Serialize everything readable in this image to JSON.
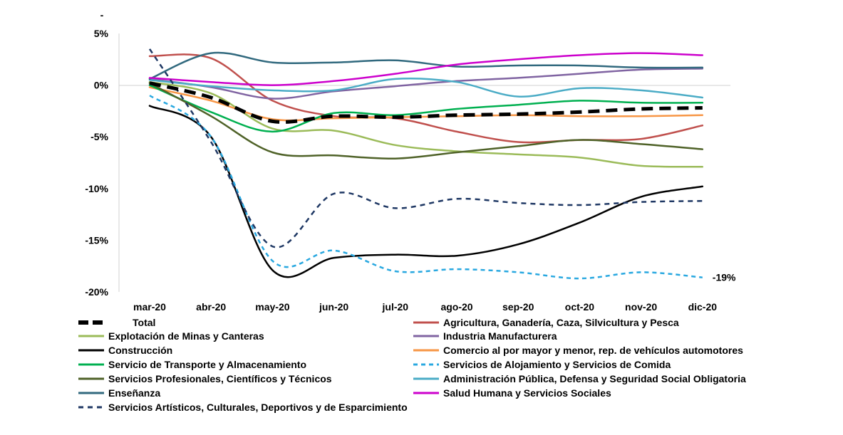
{
  "chart_data": {
    "type": "line",
    "title": "",
    "xlabel": "",
    "ylabel": "",
    "top_mark": "-",
    "categories": [
      "mar-20",
      "abr-20",
      "may-20",
      "jun-20",
      "jul-20",
      "ago-20",
      "sep-20",
      "oct-20",
      "nov-20",
      "dic-20"
    ],
    "y_ticks": [
      {
        "value": 5,
        "label": "5%"
      },
      {
        "value": 0,
        "label": "0%"
      },
      {
        "value": -5,
        "label": "-5%"
      },
      {
        "value": -10,
        "label": "-10%"
      },
      {
        "value": -15,
        "label": "-15%"
      },
      {
        "value": -20,
        "label": "-20%"
      }
    ],
    "ylim": [
      -20,
      5
    ],
    "grid": false,
    "legend_position": "bottom",
    "annotations": [
      {
        "text": "-19%",
        "series": "Servicios de Alojamiento y Servicios de Comida",
        "x": "dic-20"
      }
    ],
    "series": [
      {
        "name": "Total",
        "color": "#000000",
        "dash": "long",
        "width": 5,
        "values": [
          0.2,
          -1.2,
          -3.5,
          -3.0,
          -3.1,
          -2.9,
          -2.8,
          -2.6,
          -2.3,
          -2.2
        ]
      },
      {
        "name": "Agricultura, Ganadería, Caza, Silvicultura y Pesca",
        "color": "#c0504d",
        "dash": "solid",
        "width": 2.5,
        "values": [
          2.8,
          2.6,
          -1.5,
          -3.0,
          -3.2,
          -4.5,
          -5.5,
          -5.3,
          -5.2,
          -3.9
        ]
      },
      {
        "name": "Explotación de Minas y Canteras",
        "color": "#9bbb59",
        "dash": "solid",
        "width": 2.5,
        "values": [
          0.3,
          -0.8,
          -4.2,
          -4.4,
          -5.8,
          -6.4,
          -6.7,
          -7.0,
          -7.8,
          -7.9
        ]
      },
      {
        "name": "Industria Manufacturera",
        "color": "#8064a2",
        "dash": "solid",
        "width": 2.5,
        "values": [
          0.6,
          -0.2,
          -1.3,
          -0.6,
          -0.1,
          0.4,
          0.7,
          1.1,
          1.5,
          1.6
        ]
      },
      {
        "name": "Construcción",
        "color": "#000000",
        "dash": "solid",
        "width": 2.5,
        "values": [
          -2.0,
          -5.0,
          -17.9,
          -16.7,
          -16.4,
          -16.5,
          -15.4,
          -13.3,
          -10.8,
          -9.8
        ]
      },
      {
        "name": "Comercio al por mayor y menor, rep. de vehículos automotores",
        "color": "#f79646",
        "dash": "solid",
        "width": 2.5,
        "values": [
          -0.2,
          -1.5,
          -3.3,
          -3.2,
          -3.1,
          -3.0,
          -2.9,
          -3.0,
          -3.0,
          -2.9
        ]
      },
      {
        "name": "Servicio de Transporte y Almacenamiento",
        "color": "#00b050",
        "dash": "solid",
        "width": 2.5,
        "values": [
          0.0,
          -2.6,
          -4.5,
          -2.7,
          -2.9,
          -2.3,
          -1.9,
          -1.5,
          -1.7,
          -1.7
        ]
      },
      {
        "name": "Servicios de Alojamiento y Servicios de Comida",
        "color": "#29a8e0",
        "dash": "short",
        "width": 2.5,
        "values": [
          -1.0,
          -5.0,
          -17.0,
          -16.0,
          -18.0,
          -17.8,
          -18.1,
          -18.7,
          -18.1,
          -18.6
        ]
      },
      {
        "name": "Servicios Profesionales, Científicos y Técnicos",
        "color": "#4f6228",
        "dash": "solid",
        "width": 2.5,
        "values": [
          0.2,
          -3.0,
          -6.5,
          -6.8,
          -7.1,
          -6.5,
          -5.9,
          -5.3,
          -5.7,
          -6.2
        ]
      },
      {
        "name": "Administración Pública, Defensa y Seguridad Social Obligatoria",
        "color": "#4bacc6",
        "dash": "solid",
        "width": 2.5,
        "values": [
          0.5,
          -0.1,
          -0.5,
          -0.5,
          0.6,
          0.3,
          -1.1,
          -0.3,
          -0.5,
          -1.2
        ]
      },
      {
        "name": "Enseñanza",
        "color": "#31697e",
        "dash": "solid",
        "width": 2.5,
        "values": [
          0.6,
          3.1,
          2.2,
          2.2,
          2.4,
          1.8,
          1.9,
          1.9,
          1.7,
          1.7
        ]
      },
      {
        "name": "Salud Humana y Servicios Sociales",
        "color": "#cc00cc",
        "dash": "solid",
        "width": 2.5,
        "values": [
          0.7,
          0.3,
          0.0,
          0.4,
          1.1,
          2.0,
          2.5,
          2.9,
          3.1,
          2.9
        ]
      },
      {
        "name": "Servicios  Artísticos, Culturales, Deportivos y de Esparcimiento",
        "color": "#1f3864",
        "dash": "medium",
        "width": 2.5,
        "values": [
          3.5,
          -5.5,
          -15.6,
          -10.5,
          -11.9,
          -11.0,
          -11.4,
          -11.6,
          -11.3,
          -11.2
        ]
      }
    ],
    "legend_order": [
      0,
      1,
      2,
      3,
      4,
      5,
      6,
      7,
      8,
      9,
      10,
      11,
      12
    ]
  }
}
